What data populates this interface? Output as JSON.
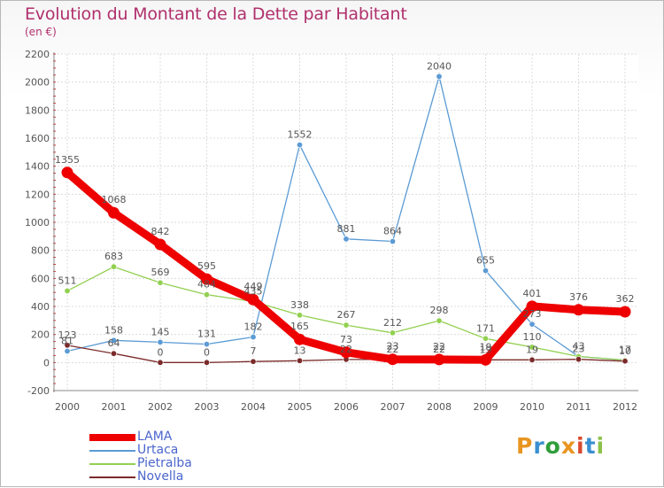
{
  "header": {
    "title": "Evolution du Montant de la Dette par Habitant",
    "subtitle": "(en €)"
  },
  "brand": {
    "letters": [
      "P",
      "r",
      "o",
      "x",
      "i",
      "t",
      "i"
    ],
    "colors": [
      "#e8951f",
      "#3a8fd0",
      "#2f9e3a",
      "#e8951f",
      "#d94a2e",
      "#3a8fd0",
      "#8bc34a"
    ]
  },
  "chart_data": {
    "type": "line",
    "x": [
      "2000",
      "2001",
      "2002",
      "2003",
      "2004",
      "2005",
      "2006",
      "2007",
      "2008",
      "2009",
      "2010",
      "2011",
      "2012"
    ],
    "y_ticks": [
      "-200",
      "0",
      "200",
      "400",
      "600",
      "800",
      "1000",
      "1200",
      "1400",
      "1600",
      "1800",
      "2000",
      "2200"
    ],
    "ylim": [
      -200,
      2200
    ],
    "grid": true,
    "legend_position": "bottom-left",
    "series": [
      {
        "name": "LAMA",
        "color": "#ee0000",
        "values": [
          1355,
          1068,
          842,
          595,
          449,
          165,
          73,
          23,
          22,
          19,
          401,
          376,
          362
        ],
        "labels": [
          "1355",
          "1068",
          "842",
          "595",
          "449",
          "165",
          "73",
          "23",
          "22",
          "19",
          "401",
          "376",
          "362"
        ]
      },
      {
        "name": "Urtaca",
        "color": "#5b9bd5",
        "values": [
          81,
          158,
          145,
          131,
          182,
          1552,
          881,
          864,
          2040,
          655,
          273,
          43,
          17
        ],
        "labels": [
          "81",
          "158",
          "145",
          "131",
          "182",
          "1552",
          "881",
          "864",
          "2040",
          "655",
          "273",
          "43",
          "17"
        ]
      },
      {
        "name": "Pietralba",
        "color": "#92d050",
        "values": [
          511,
          683,
          569,
          484,
          435,
          338,
          267,
          212,
          298,
          171,
          110,
          43,
          17
        ],
        "labels": [
          "511",
          "683",
          "569",
          "484",
          "435",
          "338",
          "267",
          "212",
          "298",
          "171",
          "110",
          "",
          ""
        ]
      },
      {
        "name": "Novella",
        "color": "#7b2a2a",
        "values": [
          123,
          64,
          0,
          0,
          7,
          13,
          22,
          22,
          22,
          19,
          19,
          23,
          10
        ],
        "labels": [
          "123",
          "64",
          "0",
          "0",
          "7",
          "13",
          "22",
          "22",
          "22",
          "19",
          "19",
          "23",
          "10"
        ]
      }
    ]
  }
}
